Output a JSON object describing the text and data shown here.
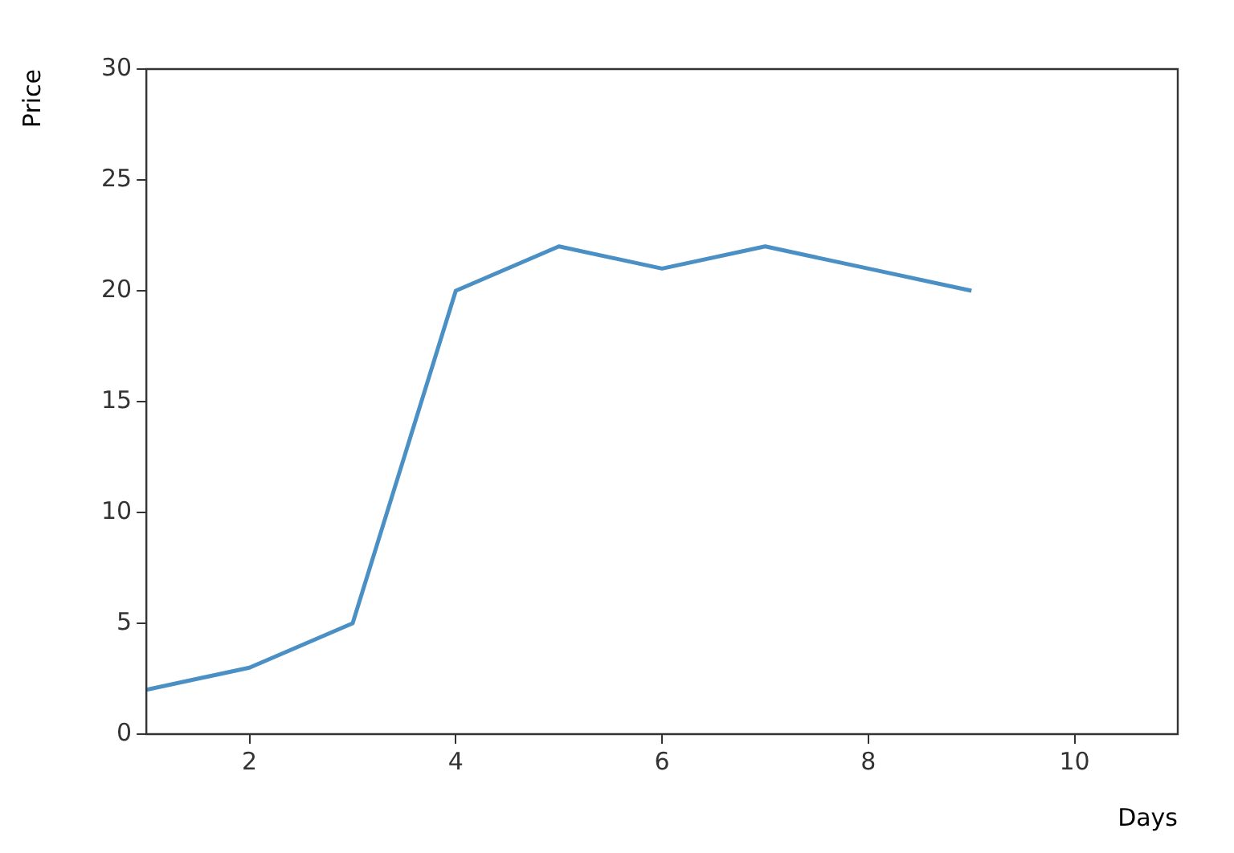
{
  "chart_data": {
    "type": "line",
    "xlabel": "Days",
    "ylabel": "Price",
    "x": [
      1,
      2,
      3,
      4,
      5,
      6,
      7,
      8,
      9
    ],
    "series": [
      {
        "color": "#4a90c4",
        "values": [
          2,
          3,
          5,
          20,
          22,
          21,
          22,
          21,
          20
        ]
      }
    ],
    "xlim": [
      1,
      11
    ],
    "xticks": [
      2,
      4,
      6,
      8,
      10
    ],
    "ylim": [
      0,
      30
    ],
    "yticks": [
      0,
      5,
      10,
      15,
      20,
      25,
      30
    ],
    "grid": false,
    "legend": false,
    "marker": "none",
    "line_style": "solid"
  }
}
